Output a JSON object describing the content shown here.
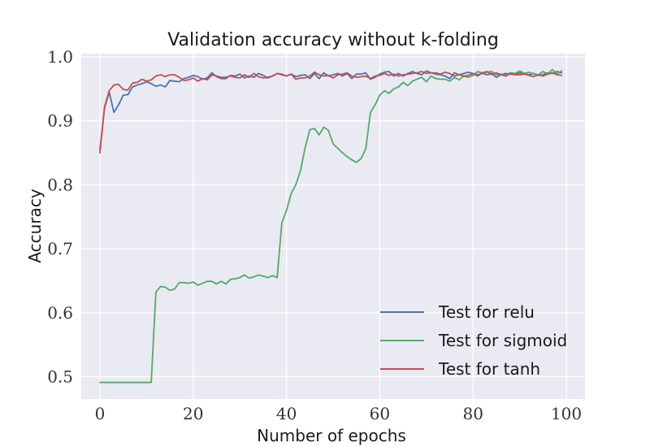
{
  "chart_data": {
    "type": "line",
    "title": "Validation accuracy without k-folding",
    "xlabel": "Number of epochs",
    "ylabel": "Accuracy",
    "xlim": [
      -4,
      104
    ],
    "ylim": [
      0.465,
      1.005
    ],
    "xticks": [
      0,
      20,
      40,
      60,
      80,
      100
    ],
    "yticks": [
      0.5,
      0.6,
      0.7,
      0.8,
      0.9,
      1.0
    ],
    "xtick_labels": [
      "0",
      "20",
      "40",
      "60",
      "80",
      "100"
    ],
    "ytick_labels": [
      "0.5",
      "0.6",
      "0.7",
      "0.8",
      "0.9",
      "1.0"
    ],
    "grid": true,
    "legend_position": "lower-right",
    "background": "#eaeaf2",
    "series": [
      {
        "name": "Test for relu",
        "color": "#4c72b0",
        "values": [
          0.855,
          0.92,
          0.945,
          0.913,
          0.925,
          0.94,
          0.941,
          0.953,
          0.956,
          0.958,
          0.961,
          0.958,
          0.954,
          0.956,
          0.953,
          0.963,
          0.962,
          0.961,
          0.966,
          0.968,
          0.971,
          0.969,
          0.965,
          0.967,
          0.975,
          0.969,
          0.966,
          0.966,
          0.971,
          0.97,
          0.973,
          0.967,
          0.97,
          0.968,
          0.974,
          0.971,
          0.967,
          0.97,
          0.974,
          0.972,
          0.97,
          0.973,
          0.969,
          0.971,
          0.972,
          0.966,
          0.974,
          0.966,
          0.975,
          0.97,
          0.972,
          0.974,
          0.97,
          0.974,
          0.966,
          0.973,
          0.973,
          0.975,
          0.965,
          0.968,
          0.973,
          0.976,
          0.977,
          0.97,
          0.974,
          0.97,
          0.974,
          0.977,
          0.974,
          0.972,
          0.978,
          0.975,
          0.973,
          0.972,
          0.97,
          0.966,
          0.975,
          0.972,
          0.974,
          0.976,
          0.974,
          0.972,
          0.974,
          0.972,
          0.974,
          0.968,
          0.972,
          0.974,
          0.973,
          0.972,
          0.975,
          0.973,
          0.972,
          0.974,
          0.971,
          0.972,
          0.975,
          0.974,
          0.977,
          0.975
        ]
      },
      {
        "name": "Test for sigmoid",
        "color": "#55a868",
        "values": [
          0.491,
          0.491,
          0.491,
          0.491,
          0.491,
          0.491,
          0.491,
          0.491,
          0.491,
          0.491,
          0.491,
          0.491,
          0.632,
          0.641,
          0.64,
          0.635,
          0.637,
          0.647,
          0.647,
          0.646,
          0.648,
          0.643,
          0.646,
          0.649,
          0.649,
          0.645,
          0.649,
          0.645,
          0.652,
          0.653,
          0.655,
          0.659,
          0.654,
          0.656,
          0.659,
          0.657,
          0.655,
          0.658,
          0.655,
          0.74,
          0.76,
          0.786,
          0.8,
          0.822,
          0.858,
          0.886,
          0.888,
          0.878,
          0.89,
          0.885,
          0.864,
          0.857,
          0.85,
          0.844,
          0.839,
          0.835,
          0.841,
          0.856,
          0.913,
          0.925,
          0.94,
          0.947,
          0.943,
          0.95,
          0.953,
          0.96,
          0.955,
          0.962,
          0.965,
          0.968,
          0.961,
          0.97,
          0.966,
          0.965,
          0.965,
          0.962,
          0.968,
          0.964,
          0.97,
          0.968,
          0.971,
          0.977,
          0.975,
          0.976,
          0.977,
          0.972,
          0.973,
          0.971,
          0.975,
          0.974,
          0.978,
          0.974,
          0.976,
          0.973,
          0.972,
          0.977,
          0.973,
          0.98,
          0.973,
          0.978
        ]
      },
      {
        "name": "Test for tanh",
        "color": "#c44e52",
        "values": [
          0.85,
          0.922,
          0.947,
          0.956,
          0.957,
          0.949,
          0.948,
          0.959,
          0.96,
          0.965,
          0.962,
          0.964,
          0.97,
          0.972,
          0.969,
          0.972,
          0.972,
          0.968,
          0.963,
          0.964,
          0.967,
          0.962,
          0.966,
          0.964,
          0.972,
          0.97,
          0.968,
          0.968,
          0.97,
          0.968,
          0.967,
          0.972,
          0.968,
          0.974,
          0.969,
          0.967,
          0.968,
          0.97,
          0.974,
          0.973,
          0.97,
          0.973,
          0.965,
          0.967,
          0.967,
          0.97,
          0.976,
          0.972,
          0.97,
          0.971,
          0.967,
          0.972,
          0.973,
          0.975,
          0.97,
          0.968,
          0.969,
          0.97,
          0.966,
          0.97,
          0.971,
          0.974,
          0.971,
          0.973,
          0.97,
          0.972,
          0.973,
          0.974,
          0.975,
          0.977,
          0.974,
          0.975,
          0.975,
          0.973,
          0.976,
          0.974,
          0.97,
          0.972,
          0.97,
          0.971,
          0.974,
          0.97,
          0.975,
          0.977,
          0.972,
          0.975,
          0.972,
          0.97,
          0.974,
          0.972,
          0.972,
          0.973,
          0.971,
          0.969,
          0.972,
          0.97,
          0.973,
          0.975,
          0.972,
          0.971
        ]
      }
    ]
  }
}
